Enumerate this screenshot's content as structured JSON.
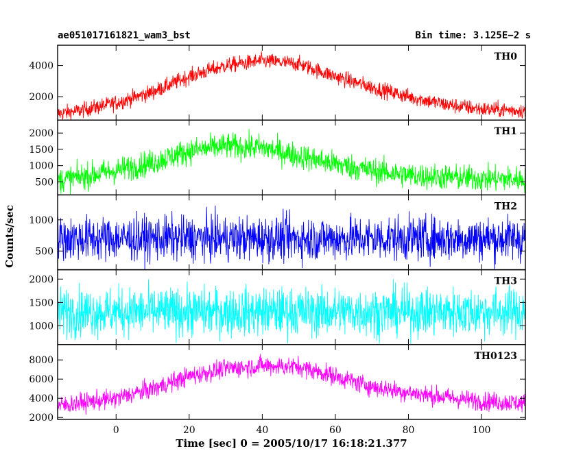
{
  "title_left": "ae051017161821_wam3_bst",
  "title_right": "Bin time: 3.125E−2 s",
  "chart_data": {
    "type": "line",
    "xlabel": "Time [sec] 0 = 2005/10/17 16:18:21.377",
    "ylabel": "Counts/sec",
    "xlim": [
      -16,
      112
    ],
    "x_ticks": [
      0,
      20,
      40,
      60,
      80,
      100
    ],
    "x_tick_labels": [
      "0",
      "20",
      "40",
      "60",
      "80",
      "100"
    ],
    "grid": false,
    "panels": [
      {
        "name": "TH0",
        "color": "#ff0000",
        "ylim": [
          500,
          5300
        ],
        "y_ticks": [
          2000,
          4000
        ],
        "y_tick_labels": [
          "2000",
          "4000"
        ],
        "x": [
          -16,
          -10,
          0,
          10,
          20,
          30,
          40,
          50,
          60,
          70,
          80,
          90,
          100,
          112
        ],
        "y": [
          900,
          1100,
          1600,
          2300,
          3300,
          4000,
          4300,
          4100,
          3300,
          2600,
          2000,
          1500,
          1200,
          1100
        ],
        "spread": 250
      },
      {
        "name": "TH1",
        "color": "#00ff00",
        "ylim": [
          100,
          2400
        ],
        "y_ticks": [
          500,
          1000,
          1500,
          2000
        ],
        "y_tick_labels": [
          "500",
          "1000",
          "1500",
          "2000"
        ],
        "x": [
          -16,
          -10,
          0,
          10,
          20,
          30,
          40,
          50,
          60,
          70,
          80,
          90,
          100,
          112
        ],
        "y": [
          550,
          650,
          850,
          1100,
          1450,
          1600,
          1550,
          1300,
          1050,
          850,
          700,
          650,
          600,
          580
        ],
        "spread": 200
      },
      {
        "name": "TH2",
        "color": "#0000ff",
        "ylim": [
          200,
          1400
        ],
        "y_ticks": [
          500,
          1000
        ],
        "y_tick_labels": [
          "500",
          "1000"
        ],
        "x": [
          -16,
          0,
          20,
          40,
          60,
          80,
          100,
          112
        ],
        "y": [
          700,
          700,
          700,
          700,
          700,
          700,
          700,
          700
        ],
        "spread": 180
      },
      {
        "name": "TH3",
        "color": "#00ffff",
        "ylim": [
          600,
          2200
        ],
        "y_ticks": [
          1000,
          1500,
          2000
        ],
        "y_tick_labels": [
          "1000",
          "1500",
          "2000"
        ],
        "x": [
          -16,
          0,
          20,
          40,
          60,
          80,
          100,
          112
        ],
        "y": [
          1300,
          1300,
          1300,
          1300,
          1300,
          1300,
          1300,
          1300
        ],
        "spread": 260
      },
      {
        "name": "TH0123",
        "color": "#ff00ff",
        "ylim": [
          1800,
          9600
        ],
        "y_ticks": [
          2000,
          4000,
          6000,
          8000
        ],
        "y_tick_labels": [
          "2000",
          "4000",
          "6000",
          "8000"
        ],
        "x": [
          -16,
          -10,
          0,
          10,
          20,
          30,
          40,
          50,
          60,
          70,
          80,
          90,
          100,
          112
        ],
        "y": [
          3200,
          3500,
          4000,
          5000,
          6300,
          7100,
          7400,
          7300,
          6300,
          5200,
          4600,
          4100,
          3700,
          3500
        ],
        "spread": 500
      }
    ]
  }
}
